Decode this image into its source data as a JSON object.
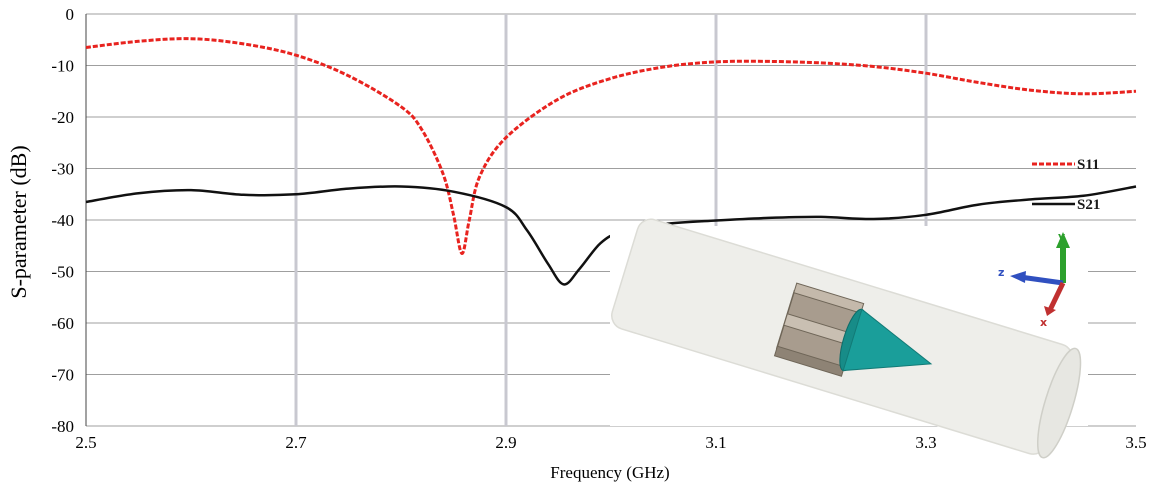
{
  "chart_data": {
    "type": "line",
    "title": "",
    "xlabel": "Frequency (GHz)",
    "ylabel": "S-parameter (dB)",
    "xlim": [
      2.5,
      3.5
    ],
    "ylim": [
      -80,
      0
    ],
    "x_ticks": [
      "2.5",
      "2.7",
      "2.9",
      "3.1",
      "3.3",
      "3.5"
    ],
    "x_tick_values": [
      2.5,
      2.7,
      2.9,
      3.1,
      3.3,
      3.5
    ],
    "y_ticks": [
      "0",
      "-10",
      "-20",
      "-30",
      "-40",
      "-50",
      "-60",
      "-70",
      "-80"
    ],
    "y_tick_values": [
      0,
      -10,
      -20,
      -30,
      -40,
      -50,
      -60,
      -70,
      -80
    ],
    "grid": true,
    "legend_position": "right",
    "series": [
      {
        "name": "S11",
        "color": "#e8231f",
        "style": "dashed",
        "x": [
          2.5,
          2.55,
          2.6,
          2.65,
          2.7,
          2.75,
          2.8,
          2.82,
          2.84,
          2.85,
          2.858,
          2.865,
          2.875,
          2.9,
          2.95,
          3.0,
          3.05,
          3.1,
          3.15,
          3.2,
          3.25,
          3.3,
          3.35,
          3.4,
          3.45,
          3.5
        ],
        "y": [
          -6.5,
          -5.3,
          -4.8,
          -5.8,
          -8,
          -12,
          -18,
          -22.5,
          -31,
          -39,
          -46.5,
          -40,
          -31.5,
          -24,
          -16.5,
          -12.5,
          -10.3,
          -9.3,
          -9.2,
          -9.5,
          -10.2,
          -11.5,
          -13.3,
          -14.8,
          -15.5,
          -15
        ]
      },
      {
        "name": "S21",
        "color": "#111111",
        "style": "solid",
        "x": [
          2.5,
          2.55,
          2.6,
          2.65,
          2.7,
          2.75,
          2.8,
          2.85,
          2.9,
          2.92,
          2.94,
          2.955,
          2.97,
          2.99,
          3.01,
          3.05,
          3.1,
          3.15,
          3.2,
          3.25,
          3.3,
          3.35,
          3.4,
          3.45,
          3.5
        ],
        "y": [
          -36.5,
          -34.8,
          -34.2,
          -35.1,
          -35,
          -33.9,
          -33.5,
          -34.5,
          -37.5,
          -42,
          -48.5,
          -52.5,
          -49.5,
          -44.5,
          -42.3,
          -40.8,
          -40.1,
          -39.6,
          -39.4,
          -39.8,
          -39,
          -37,
          -36,
          -35.3,
          -33.5
        ]
      }
    ]
  },
  "inset": {
    "axis_labels": [
      "y",
      "z",
      "x"
    ],
    "colors": {
      "tube": "#eeeeea",
      "metal": "#a89c8e",
      "cone": "#1a9e9a",
      "axis_y": "#2ca02c",
      "axis_z": "#3050c0",
      "axis_x": "#c03030"
    }
  }
}
